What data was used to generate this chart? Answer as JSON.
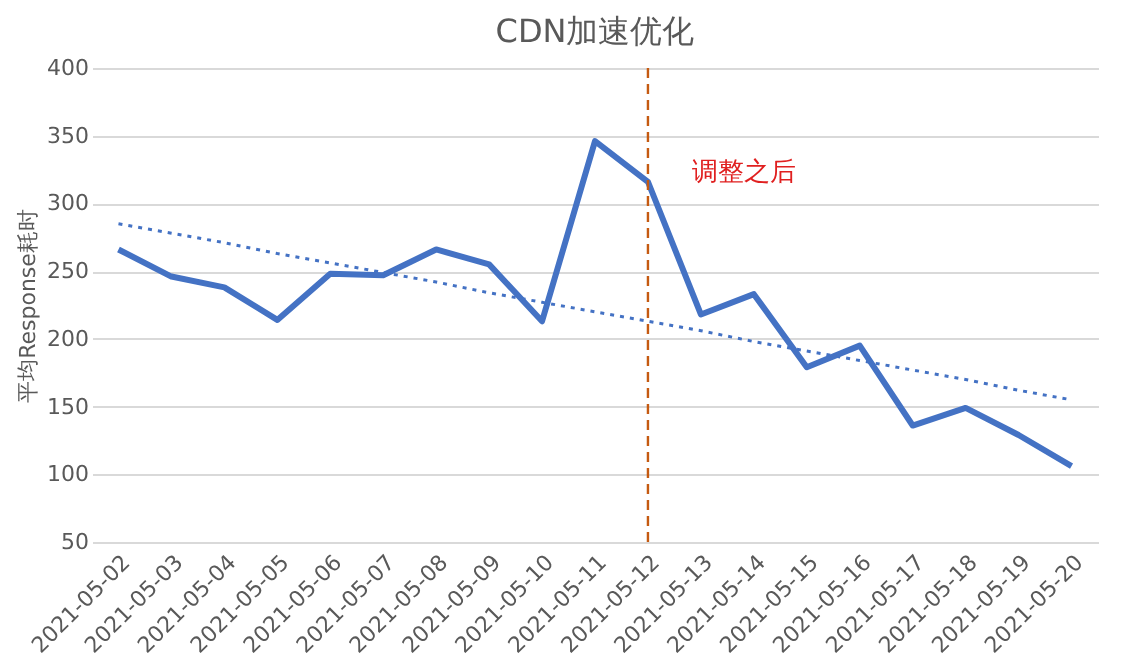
{
  "chart_data": {
    "type": "line",
    "title": "CDN加速优化",
    "ylabel": "平均Response耗时",
    "categories": [
      "2021-05-02",
      "2021-05-03",
      "2021-05-04",
      "2021-05-05",
      "2021-05-06",
      "2021-05-07",
      "2021-05-08",
      "2021-05-09",
      "2021-05-10",
      "2021-05-11",
      "2021-05-12",
      "2021-05-13",
      "2021-05-14",
      "2021-05-15",
      "2021-05-16",
      "2021-05-17",
      "2021-05-18",
      "2021-05-19",
      "2021-05-20"
    ],
    "series": [
      {
        "color": "#4472c4",
        "values": [
          266,
          246,
          238,
          214,
          248,
          247,
          266,
          255,
          213,
          346,
          316,
          218,
          233,
          179,
          195,
          136,
          149,
          129,
          106
        ]
      },
      {
        "type": "line",
        "line_style": "dotted",
        "color": "#4472c4",
        "values": [
          285,
          278,
          271,
          263,
          256,
          249,
          242,
          234,
          227,
          220,
          213,
          206,
          198,
          191,
          184,
          177,
          170,
          162,
          155
        ]
      }
    ],
    "ylim": [
      50,
      400
    ],
    "yticks": [
      50,
      100,
      150,
      200,
      250,
      300,
      350,
      400
    ],
    "grid": "y",
    "marker": "none",
    "line_style": "solid",
    "ref_lines": [
      {
        "axis": "x",
        "value": "2021-05-12",
        "color": "#c55a11",
        "line_style": "dashed"
      }
    ],
    "annotations": [
      "调整之后"
    ]
  }
}
